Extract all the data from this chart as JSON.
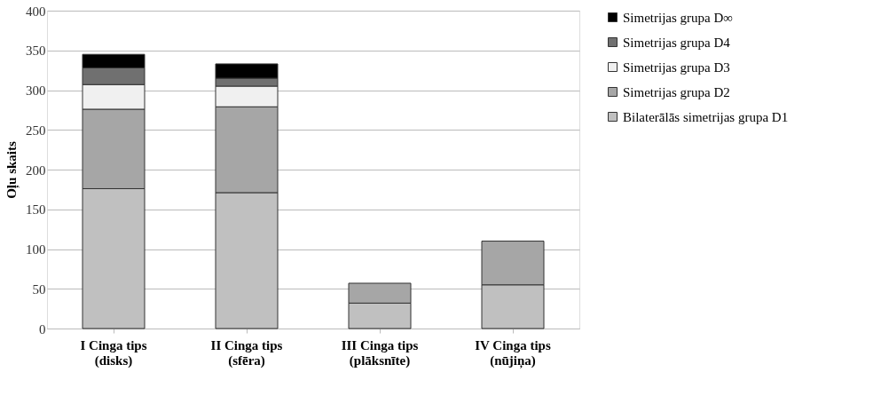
{
  "chart_data": {
    "type": "bar",
    "stacked": true,
    "ylabel": "Oļu skaits",
    "categories": [
      "I Cinga tips (disks)",
      "II Cinga tips (sfēra)",
      "III Cinga tips (plāksnīte)",
      "IV Cinga tips (nūjiņa)"
    ],
    "series": [
      {
        "name": "Bilaterālās simetrijas grupa D1",
        "color": "#c0c0c0",
        "values": [
          176,
          171,
          32,
          55
        ]
      },
      {
        "name": "Simetrijas grupa D2",
        "color": "#a6a6a6",
        "values": [
          100,
          108,
          25,
          55
        ]
      },
      {
        "name": "Simetrijas grupa D3",
        "color": "#f0f0f0",
        "values": [
          31,
          26,
          null,
          null
        ]
      },
      {
        "name": "Simetrijas grupa D4",
        "color": "#707070",
        "values": [
          21,
          10,
          null,
          null
        ]
      },
      {
        "name": "Simetrijas grupa D∞",
        "color": "#000000",
        "values": [
          17,
          18,
          null,
          null
        ]
      }
    ],
    "ylim": [
      0,
      400
    ],
    "yticks": [
      0,
      50,
      100,
      150,
      200,
      250,
      300,
      350,
      400
    ],
    "grid": "y",
    "legend": "right"
  }
}
